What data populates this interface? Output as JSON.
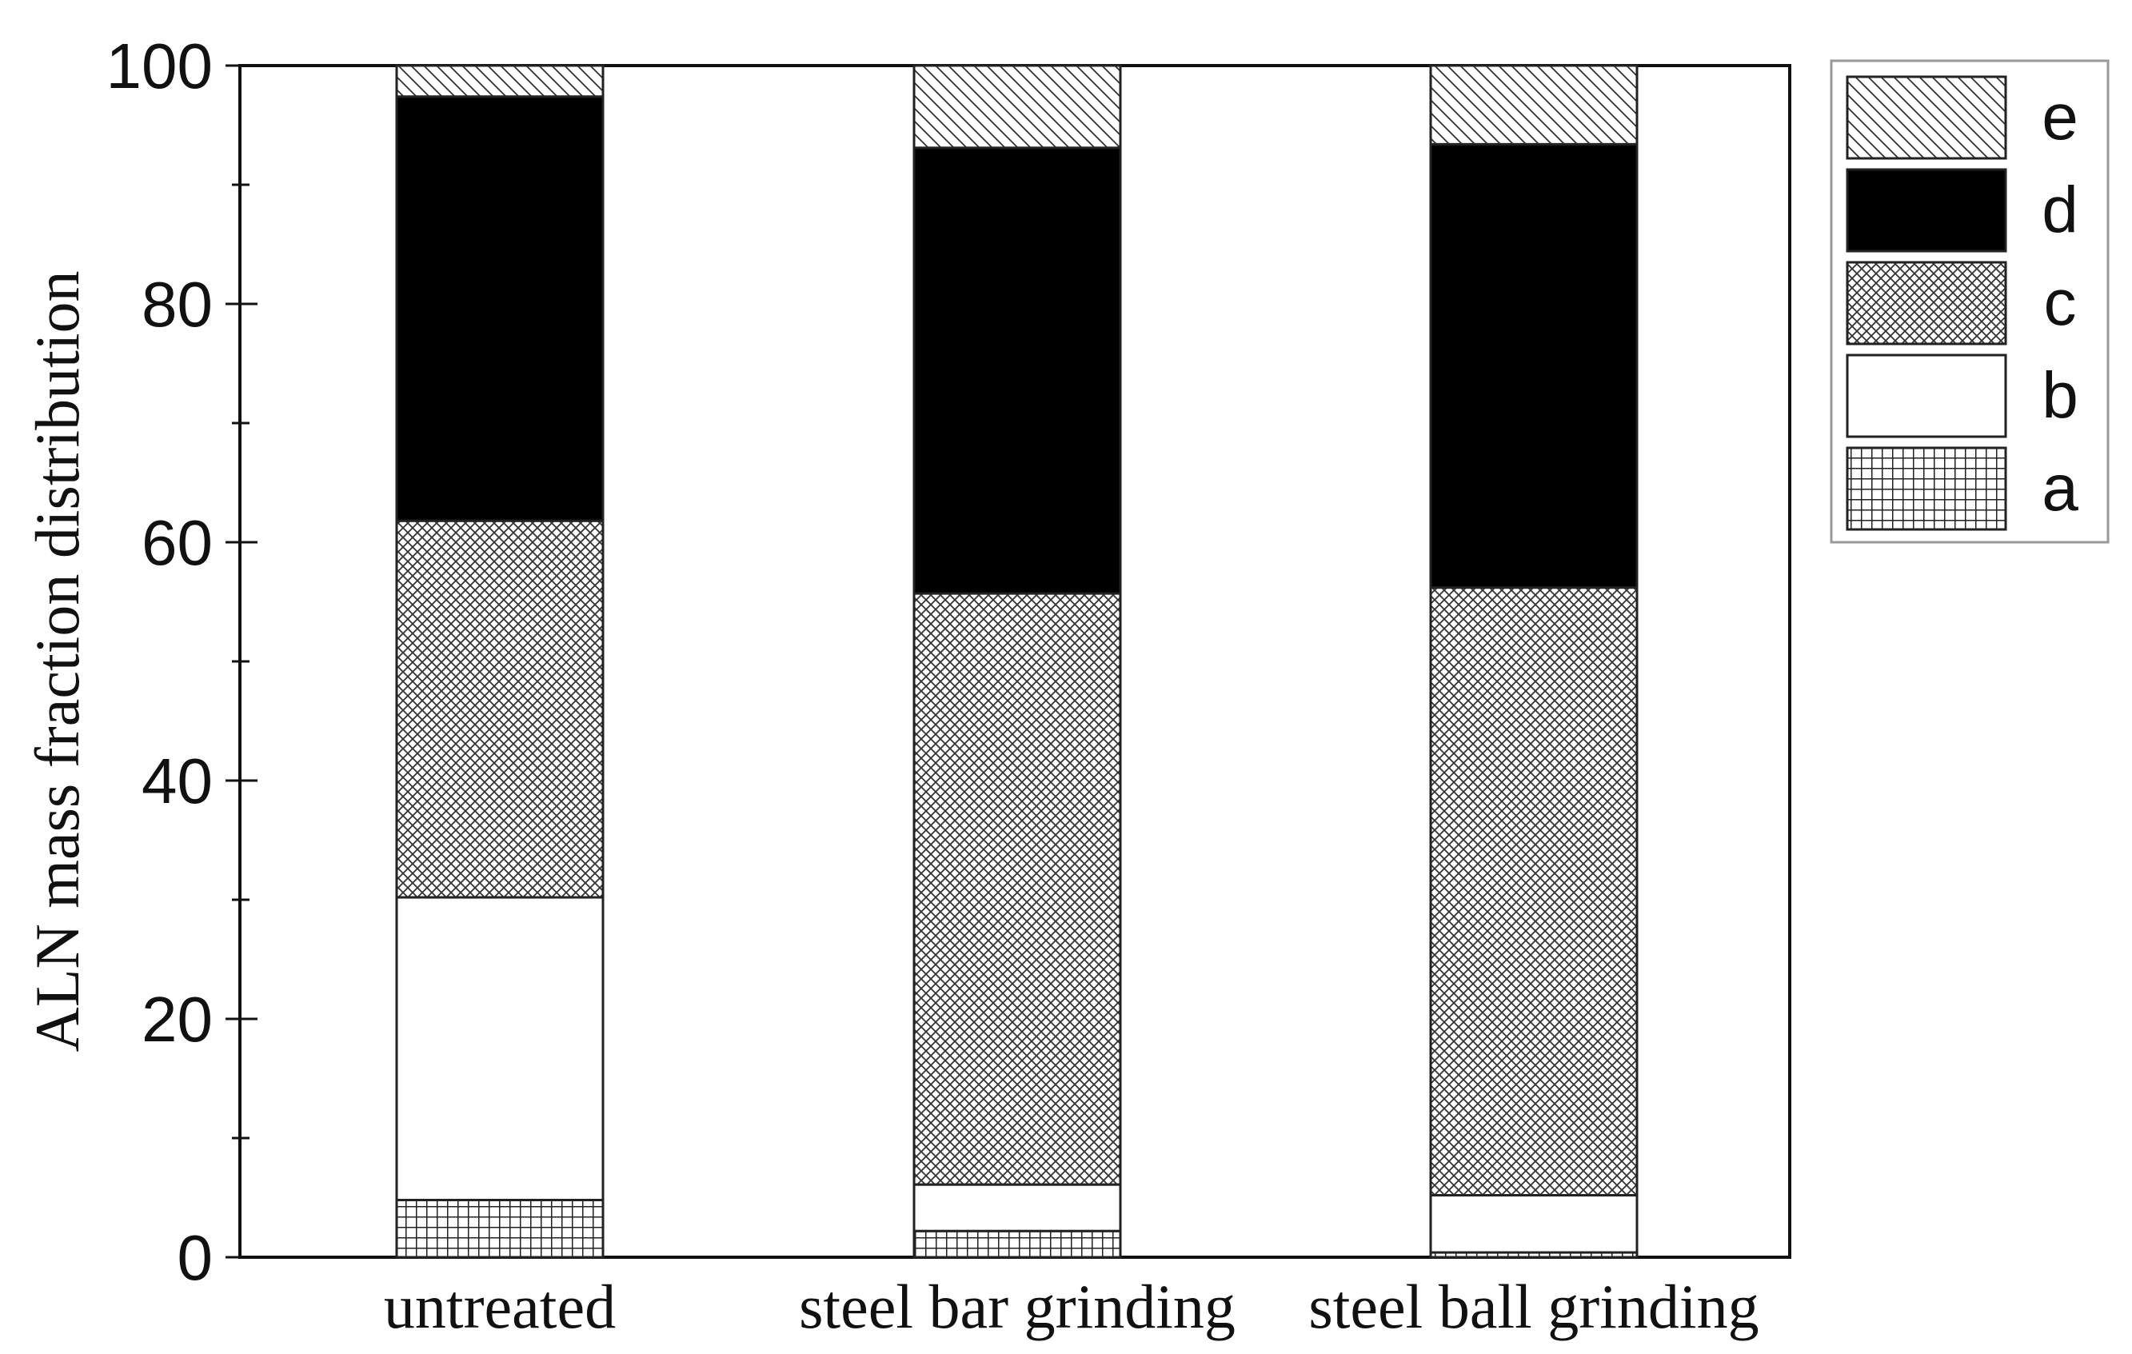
{
  "chart_data": {
    "type": "bar",
    "stacked": true,
    "title": "",
    "xlabel": "",
    "ylabel": "ALN mass fraction distribution",
    "ylim": [
      0,
      100
    ],
    "yticks_major": [
      0,
      20,
      40,
      60,
      80,
      100
    ],
    "yticks_minor_step": 10,
    "grid": false,
    "legend_position": "outside top-right",
    "categories": [
      "untreated",
      "steel bar grinding",
      "steel ball grinding"
    ],
    "series": [
      {
        "name": "a",
        "pattern": "grid",
        "values": [
          4.8,
          2.2,
          0.4
        ]
      },
      {
        "name": "b",
        "pattern": "plain-white",
        "values": [
          25.4,
          3.9,
          4.8
        ]
      },
      {
        "name": "c",
        "pattern": "crosshatch",
        "values": [
          31.6,
          49.6,
          51.0
        ]
      },
      {
        "name": "d",
        "pattern": "solid-black",
        "values": [
          35.6,
          37.4,
          37.2
        ]
      },
      {
        "name": "e",
        "pattern": "diagonal",
        "values": [
          2.6,
          6.9,
          6.6
        ]
      }
    ],
    "legend_order": [
      "e",
      "d",
      "c",
      "b",
      "a"
    ],
    "colors": {
      "stroke": "#222222",
      "fill_dark": "#000000",
      "background": "#ffffff"
    }
  }
}
